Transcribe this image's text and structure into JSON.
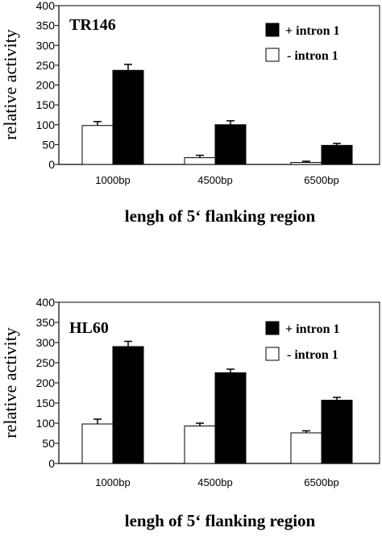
{
  "chart_data": [
    {
      "type": "bar",
      "title": "TR146",
      "xlabel": "lengh of 5‘ flanking region",
      "ylabel": "relative activity",
      "categories": [
        "1000bp",
        "4500bp",
        "6500bp"
      ],
      "ylim": [
        0,
        400
      ],
      "yticks": [
        "0",
        "50",
        "100",
        "150",
        "200",
        "250",
        "300",
        "350",
        "400"
      ],
      "legend_position": "top-right",
      "series": [
        {
          "name": "- intron 1",
          "color": "#ffffff",
          "values": [
            98,
            17,
            5
          ],
          "errors": [
            10,
            6,
            3
          ]
        },
        {
          "name": "+ intron 1",
          "color": "#000000",
          "values": [
            237,
            100,
            48
          ],
          "errors": [
            15,
            10,
            5
          ]
        }
      ]
    },
    {
      "type": "bar",
      "title": "HL60",
      "xlabel": "lengh of 5‘ flanking region",
      "ylabel": "relative activity",
      "categories": [
        "1000bp",
        "4500bp",
        "6500bp"
      ],
      "ylim": [
        0,
        400
      ],
      "yticks": [
        "0",
        "50",
        "100",
        "150",
        "200",
        "250",
        "300",
        "350",
        "400"
      ],
      "legend_position": "top-right",
      "series": [
        {
          "name": "- intron 1",
          "color": "#ffffff",
          "values": [
            98,
            93,
            76
          ],
          "errors": [
            12,
            7,
            5
          ]
        },
        {
          "name": "+ intron 1",
          "color": "#000000",
          "values": [
            290,
            225,
            157
          ],
          "errors": [
            13,
            9,
            7
          ]
        }
      ]
    }
  ]
}
